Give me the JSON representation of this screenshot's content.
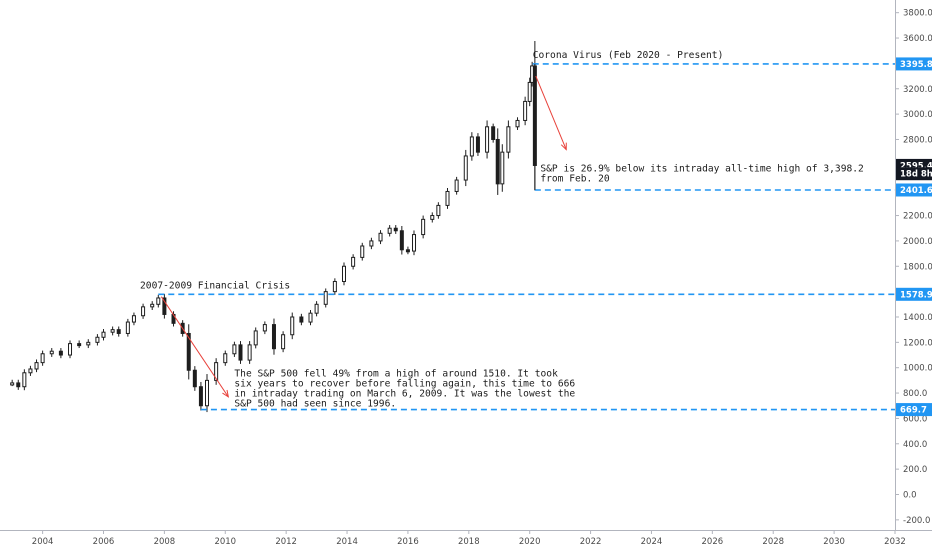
{
  "chart_data": {
    "type": "candlestick",
    "title": "",
    "xlabel": "",
    "ylabel": "",
    "grid": false,
    "xlim": [
      2002.6,
      2032.0
    ],
    "ylim": [
      -280,
      3900
    ],
    "x_ticks": [
      "2004",
      "2006",
      "2008",
      "2010",
      "2012",
      "2014",
      "2016",
      "2018",
      "2020",
      "2022",
      "2024",
      "2026",
      "2028",
      "2030",
      "2032"
    ],
    "y_ticks": [
      "3800.0",
      "3600.0",
      "3400.0",
      "3200.0",
      "3000.0",
      "2800.0",
      "2600.0",
      "2400.0",
      "2200.0",
      "2000.0",
      "1800.0",
      "1600.0",
      "1400.0",
      "1200.0",
      "1000.0",
      "800.0",
      "600.0",
      "400.0",
      "200.0",
      "0.0",
      "-200.0"
    ],
    "series": [
      {
        "values": [
          [
            2003.0,
            880
          ],
          [
            2003.2,
            850
          ],
          [
            2003.4,
            960
          ],
          [
            2003.6,
            990
          ],
          [
            2003.8,
            1040
          ],
          [
            2004.0,
            1110
          ],
          [
            2004.3,
            1130
          ],
          [
            2004.6,
            1100
          ],
          [
            2004.9,
            1190
          ],
          [
            2005.2,
            1180
          ],
          [
            2005.5,
            1200
          ],
          [
            2005.8,
            1240
          ],
          [
            2006.0,
            1280
          ],
          [
            2006.3,
            1300
          ],
          [
            2006.5,
            1270
          ],
          [
            2006.8,
            1360
          ],
          [
            2007.0,
            1410
          ],
          [
            2007.3,
            1480
          ],
          [
            2007.6,
            1500
          ],
          [
            2007.8,
            1550
          ],
          [
            2008.0,
            1420
          ],
          [
            2008.3,
            1350
          ],
          [
            2008.6,
            1270
          ],
          [
            2008.8,
            980
          ],
          [
            2009.0,
            850
          ],
          [
            2009.2,
            700
          ],
          [
            2009.4,
            900
          ],
          [
            2009.7,
            1040
          ],
          [
            2010.0,
            1110
          ],
          [
            2010.3,
            1180
          ],
          [
            2010.5,
            1060
          ],
          [
            2010.8,
            1180
          ],
          [
            2011.0,
            1290
          ],
          [
            2011.3,
            1340
          ],
          [
            2011.6,
            1150
          ],
          [
            2011.9,
            1260
          ],
          [
            2012.2,
            1400
          ],
          [
            2012.5,
            1360
          ],
          [
            2012.8,
            1430
          ],
          [
            2013.0,
            1500
          ],
          [
            2013.3,
            1600
          ],
          [
            2013.6,
            1680
          ],
          [
            2013.9,
            1800
          ],
          [
            2014.2,
            1870
          ],
          [
            2014.5,
            1960
          ],
          [
            2014.8,
            2000
          ],
          [
            2015.1,
            2060
          ],
          [
            2015.4,
            2100
          ],
          [
            2015.6,
            2080
          ],
          [
            2015.8,
            1930
          ],
          [
            2016.0,
            1920
          ],
          [
            2016.2,
            2050
          ],
          [
            2016.5,
            2170
          ],
          [
            2016.8,
            2200
          ],
          [
            2017.0,
            2280
          ],
          [
            2017.3,
            2390
          ],
          [
            2017.6,
            2480
          ],
          [
            2017.9,
            2670
          ],
          [
            2018.1,
            2820
          ],
          [
            2018.3,
            2700
          ],
          [
            2018.6,
            2900
          ],
          [
            2018.8,
            2800
          ],
          [
            2018.95,
            2450
          ],
          [
            2019.1,
            2700
          ],
          [
            2019.3,
            2900
          ],
          [
            2019.6,
            2950
          ],
          [
            2019.85,
            3100
          ],
          [
            2020.0,
            3250
          ],
          [
            2020.08,
            3380
          ],
          [
            2020.17,
            2595
          ]
        ]
      }
    ],
    "annotations": [
      {
        "title": "2007-2009 Financial Crisis",
        "text": [
          "The S&P 500 fell 49% from a high of around 1510. It took",
          "six years to recover before falling again, this time to 666",
          "in intraday trading on March 6, 2009. It was the lowest the",
          "S&P 500 had seen since 1996."
        ]
      },
      {
        "title": "Corona Virus (Feb 2020 - Present)",
        "text": [
          "S&P is 26.9% below its intraday all-time high of 3,398.2",
          "from Feb. 20"
        ]
      }
    ],
    "levels": [
      {
        "value": 3395.8,
        "label": "3395.8"
      },
      {
        "value": 2401.6,
        "label": "2401.6"
      },
      {
        "value": 1578.9,
        "label": "1578.9"
      },
      {
        "value": 669.7,
        "label": "669.7"
      }
    ],
    "price_badges": [
      {
        "value": 2595.4,
        "label": "2595.4"
      },
      {
        "value": 2530,
        "label": "18d 8h"
      }
    ],
    "colors": {
      "level_line": "#2196f3",
      "badge_level": "#2196f3",
      "badge_price": "#131722",
      "arrow": "#e8413a",
      "candle": "#1e1e1e"
    }
  }
}
